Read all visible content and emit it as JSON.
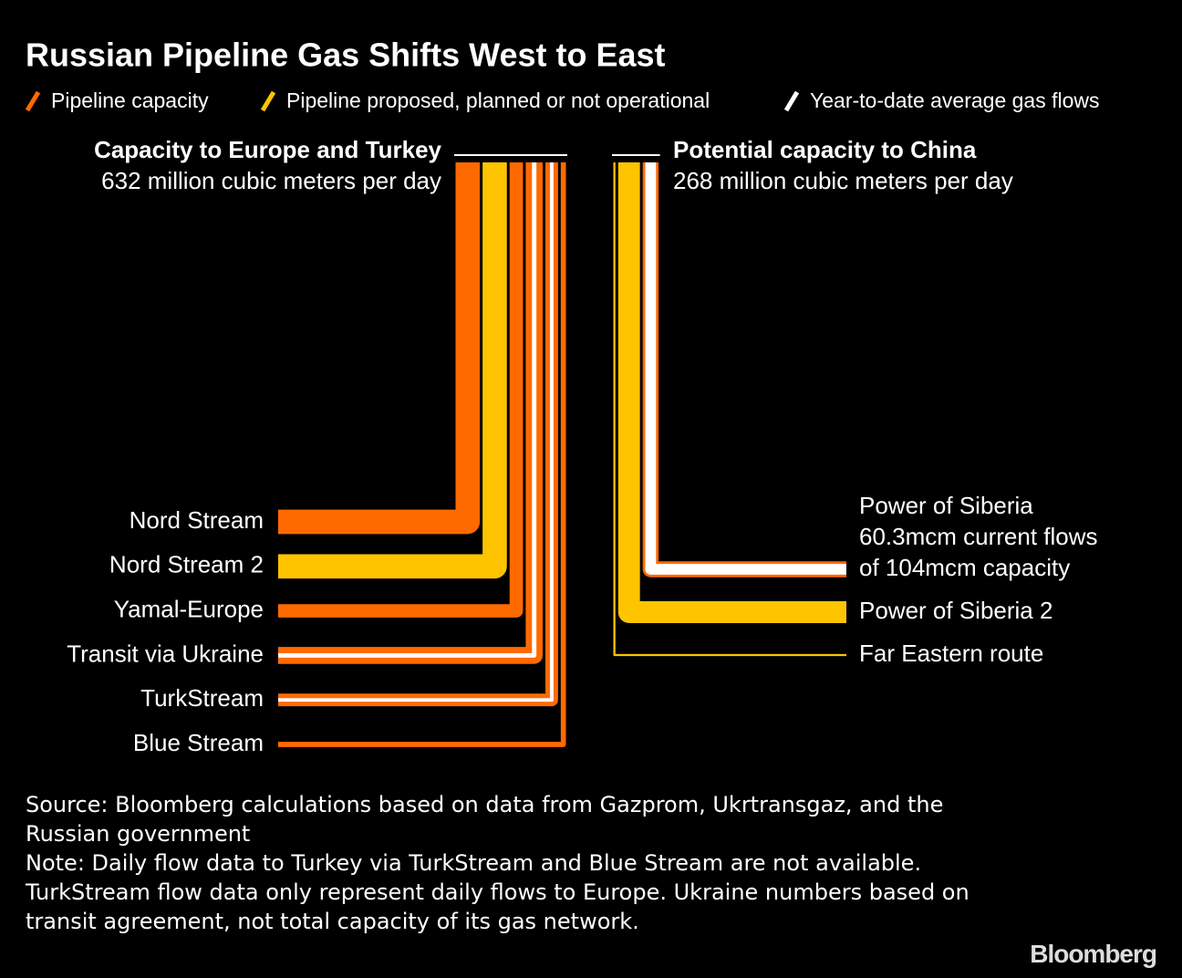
{
  "chart_data": {
    "type": "pipeline",
    "title": "Russian Pipeline Gas Shifts West to East",
    "legend": [
      {
        "name": "Pipeline capacity",
        "color": "#ff6a00"
      },
      {
        "name": "Pipeline proposed, planned or not operational",
        "color": "#ffc400"
      },
      {
        "name": "Year-to-date average gas flows",
        "color": "#ffffff"
      }
    ],
    "groups": [
      {
        "title": "Capacity to Europe and Turkey",
        "subtitle": "632 million cubic meters per day",
        "total": 632,
        "categories": [
          "Nord Stream",
          "Nord Stream 2",
          "Yamal-Europe",
          "Transit via Ukraine",
          "TurkStream",
          "Blue Stream"
        ],
        "capacity": [
          151,
          151,
          90,
          110,
          86,
          44
        ],
        "flow": [
          0,
          null,
          0,
          25,
          20,
          null
        ],
        "colors": [
          "#ff6a00",
          "#ffc400",
          "#ff6a00",
          "#ff6a00",
          "#ff6a00",
          "#ff6a00"
        ]
      },
      {
        "title": "Potential capacity to China",
        "subtitle": "268 million cubic meters per day",
        "total": 268,
        "categories": [
          "Power of Siberia",
          "Power of Siberia 2",
          "Far Eastern route"
        ],
        "category_notes": [
          [
            "60.3mcm current flows",
            "of 104mcm capacity"
          ],
          null,
          null
        ],
        "capacity": [
          104,
          137,
          27
        ],
        "flow": [
          60.3,
          null,
          null
        ],
        "colors": [
          "#ff6a00",
          "#ffc400",
          "#ffc400"
        ]
      }
    ],
    "source": "Source: Bloomberg calculations based on data from Gazprom, Ukrtransgaz, and the Russian government",
    "note": "Note: Daily flow data to Turkey via TurkStream and Blue Stream are not available. TurkStream flow data only represent daily flows to Europe. Ukraine numbers based on transit agreement, not total capacity of its gas network.",
    "brand": "Bloomberg"
  }
}
